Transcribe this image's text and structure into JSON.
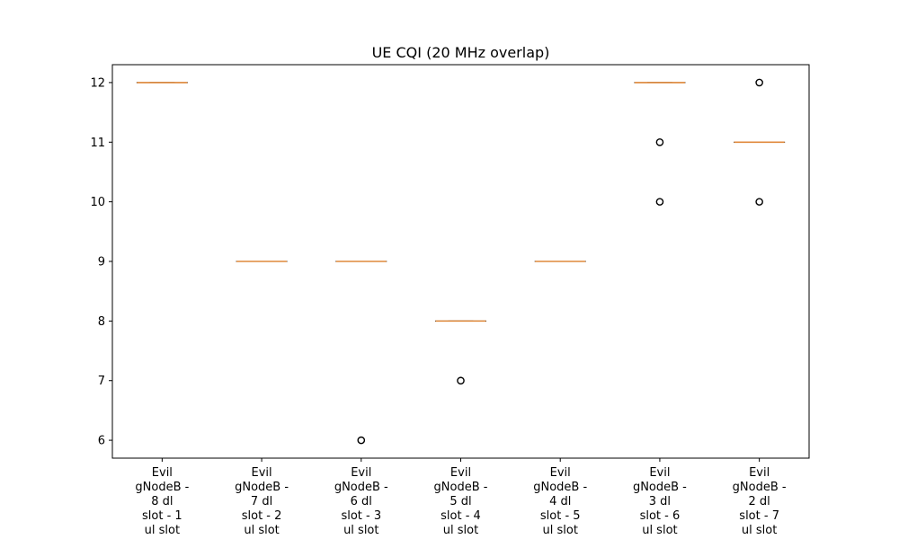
{
  "chart_data": {
    "type": "box",
    "title": "UE CQI (20 MHz overlap)",
    "xlabel": "",
    "ylabel": "",
    "ylim": [
      5.7,
      12.3
    ],
    "yticks": [
      6,
      7,
      8,
      9,
      10,
      11,
      12
    ],
    "grid": false,
    "colors": {
      "median": "#e08a3c",
      "box": "#000000",
      "outlier": "#000000"
    },
    "categories": [
      "Evil gNodeB - 8 dl slot - 1 ul slot",
      "Evil gNodeB - 7 dl slot - 2 ul slot",
      "Evil gNodeB - 6 dl slot - 3 ul slot",
      "Evil gNodeB - 5 dl slot - 4 ul slot",
      "Evil gNodeB - 4 dl slot - 5 ul slot",
      "Evil gNodeB - 3 dl slot - 6 ul slot",
      "Evil gNodeB - 2 dl slot - 7 ul slot"
    ],
    "category_lines": [
      [
        "Evil",
        "gNodeB -",
        "8 dl",
        "slot - 1",
        "ul slot"
      ],
      [
        "Evil",
        "gNodeB -",
        "7 dl",
        "slot - 2",
        "ul slot"
      ],
      [
        "Evil",
        "gNodeB -",
        "6 dl",
        "slot - 3",
        "ul slot"
      ],
      [
        "Evil",
        "gNodeB -",
        "5 dl",
        "slot - 4",
        "ul slot"
      ],
      [
        "Evil",
        "gNodeB -",
        "4 dl",
        "slot - 5",
        "ul slot"
      ],
      [
        "Evil",
        "gNodeB -",
        "3 dl",
        "slot - 6",
        "ul slot"
      ],
      [
        "Evil",
        "gNodeB -",
        "2 dl",
        "slot - 7",
        "ul slot"
      ]
    ],
    "boxes": [
      {
        "q1": 12,
        "median": 12,
        "q3": 12,
        "whisker_low": 12,
        "whisker_high": 12,
        "outliers": []
      },
      {
        "q1": 9,
        "median": 9,
        "q3": 9,
        "whisker_low": 9,
        "whisker_high": 9,
        "outliers": []
      },
      {
        "q1": 9,
        "median": 9,
        "q3": 9,
        "whisker_low": 9,
        "whisker_high": 9,
        "outliers": [
          6
        ]
      },
      {
        "q1": 8,
        "median": 8,
        "q3": 8,
        "whisker_low": 8,
        "whisker_high": 8,
        "outliers": [
          7
        ]
      },
      {
        "q1": 9,
        "median": 9,
        "q3": 9,
        "whisker_low": 9,
        "whisker_high": 9,
        "outliers": []
      },
      {
        "q1": 12,
        "median": 12,
        "q3": 12,
        "whisker_low": 12,
        "whisker_high": 12,
        "outliers": [
          11,
          10
        ]
      },
      {
        "q1": 11,
        "median": 11,
        "q3": 11,
        "whisker_low": 11,
        "whisker_high": 11,
        "outliers": [
          12,
          10
        ]
      }
    ]
  }
}
